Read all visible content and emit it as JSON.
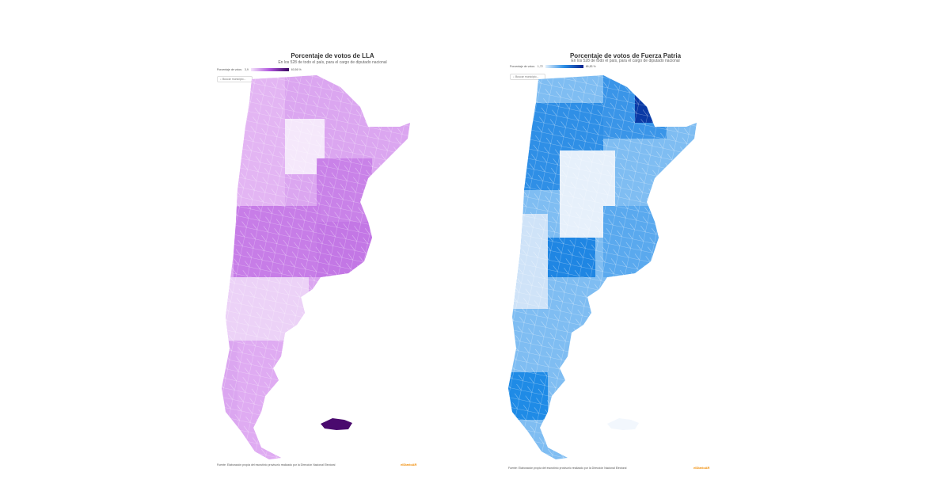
{
  "maps": [
    {
      "title": "Porcentaje de votos de LLA",
      "subtitle": "En los 528 de todo el país, para el cargo de diputado nacional",
      "legend_label": "Porcentaje de votos:",
      "legend_min": "3,9",
      "legend_max": "60,56 %",
      "search_placeholder": "Buscar municipio...",
      "source": "Fuente: Elaboración propia del escrutinio provisorio realizado por la Dirección Nacional Electoral",
      "brand": "elDiarioAR",
      "colors": {
        "light": "#f1dcf8",
        "mid": "#d89bef",
        "strong": "#c06ae4",
        "dark": "#4a0a6e"
      }
    },
    {
      "title": "Porcentaje de votos de Fuerza Patria",
      "subtitle": "En los 528 de todo el país, para el cargo de diputado nacional",
      "legend_label": "Porcentaje de votos:",
      "legend_min": "1,72",
      "legend_max": "65,83 %",
      "search_placeholder": "Buscar municipio...",
      "source": "Fuente: Elaboración propia del escrutinio provisorio realizado por la Dirección Nacional Electoral",
      "brand": "elDiarioAR",
      "colors": {
        "light": "#dcebfb",
        "mid": "#7ebdf2",
        "strong": "#1f8be6",
        "dark": "#0a2f9e"
      }
    }
  ]
}
